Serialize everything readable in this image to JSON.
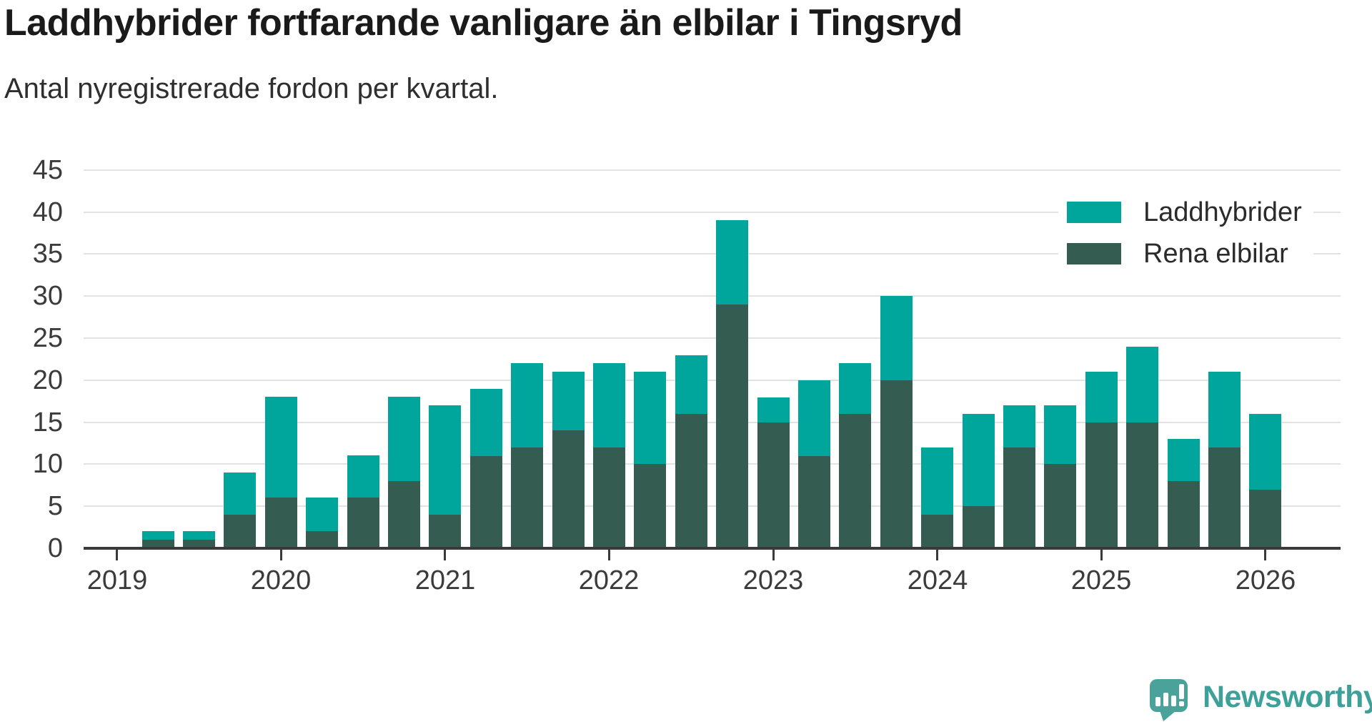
{
  "title": "Laddhybrider fortfarande vanligare än elbilar i Tingsryd",
  "subtitle": "Antal nyregistrerade fordon per kvartal.",
  "legend": {
    "items": [
      {
        "label": "Laddhybrider",
        "color": "#00a69b"
      },
      {
        "label": "Rena elbilar",
        "color": "#355c50"
      }
    ]
  },
  "brand": {
    "name": "Newsworthy",
    "color": "#3da19a",
    "icon_color": "#4aa29a"
  },
  "colors": {
    "laddhybrider": "#00a69b",
    "rena_elbilar": "#355c50",
    "gridline": "#e2e2e2",
    "axis": "#3a3a3a",
    "axis_text": "#3b3b3b",
    "title_text": "#1a1a1a"
  },
  "chart_data": {
    "type": "bar",
    "stacked": true,
    "title": "Laddhybrider fortfarande vanligare än elbilar i Tingsryd",
    "subtitle": "Antal nyregistrerade fordon per kvartal.",
    "ylabel": "Antal nyregistrerade fordon",
    "x": [
      "2019 Q2",
      "2019 Q3",
      "2019 Q4",
      "2020 Q1",
      "2020 Q2",
      "2020 Q3",
      "2020 Q4",
      "2021 Q1",
      "2021 Q2",
      "2021 Q3",
      "2021 Q4",
      "2022 Q1",
      "2022 Q2",
      "2022 Q3",
      "2022 Q4",
      "2023 Q1",
      "2023 Q2",
      "2023 Q3",
      "2023 Q4",
      "2024 Q1",
      "2024 Q2",
      "2024 Q3",
      "2024 Q4",
      "2025 Q1",
      "2025 Q2",
      "2025 Q3",
      "2025 Q4",
      "2026 Q1"
    ],
    "series": [
      {
        "name": "Rena elbilar",
        "color": "#355c50",
        "values": [
          1,
          1,
          4,
          6,
          2,
          6,
          8,
          4,
          11,
          12,
          14,
          12,
          10,
          16,
          29,
          15,
          11,
          16,
          20,
          4,
          5,
          12,
          10,
          15,
          15,
          8,
          12,
          7
        ]
      },
      {
        "name": "Laddhybrider",
        "color": "#00a69b",
        "values": [
          1,
          1,
          5,
          12,
          4,
          5,
          10,
          13,
          8,
          10,
          7,
          10,
          11,
          7,
          10,
          3,
          9,
          6,
          10,
          8,
          11,
          5,
          7,
          6,
          9,
          5,
          9,
          9
        ]
      }
    ],
    "totals": [
      2,
      2,
      9,
      18,
      6,
      11,
      18,
      17,
      19,
      22,
      21,
      22,
      21,
      23,
      39,
      18,
      20,
      22,
      30,
      12,
      16,
      17,
      17,
      21,
      24,
      13,
      21,
      16
    ],
    "y_ticks": [
      0,
      5,
      10,
      15,
      20,
      25,
      30,
      35,
      40,
      45
    ],
    "ylim": [
      0,
      45
    ],
    "x_year_ticks": [
      "2019",
      "2020",
      "2021",
      "2022",
      "2023",
      "2024",
      "2025",
      "2026"
    ],
    "grid": "horizontal",
    "legend_position": "upper-right"
  }
}
